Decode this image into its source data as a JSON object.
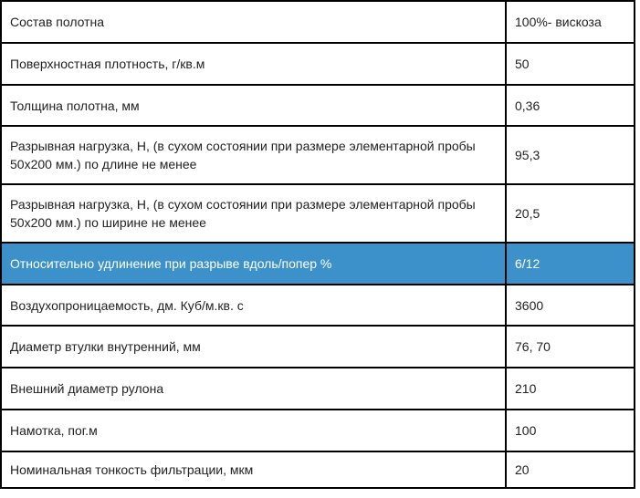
{
  "highlight_color": "#3d91cb",
  "rows": [
    {
      "param": "Состав полотна",
      "value": "100%- вискоза"
    },
    {
      "param": "Поверхностная плотность, г/кв.м",
      "value": "50"
    },
    {
      "param": "Толщина полотна, мм",
      "value": "0,36"
    },
    {
      "param": "Разрывная нагрузка, Н, (в сухом состоянии при размере элементарной пробы 50х200 мм.) по длине не менее",
      "value": "95,3"
    },
    {
      "param": "Разрывная нагрузка, Н, (в сухом состоянии при размере элементарной пробы 50х200 мм.) по ширине не менее",
      "value": "20,5"
    },
    {
      "param": "Относительно удлинение при разрыве вдоль/попер %",
      "value": "6/12",
      "highlighted": true
    },
    {
      "param": "Воздухопроницаемость, дм. Куб/м.кв. с",
      "value": "3600"
    },
    {
      "param": "Диаметр втулки внутренний, мм",
      "value": "76, 70"
    },
    {
      "param": "Внешний диаметр рулона",
      "value": "210"
    },
    {
      "param": "Намотка, пог.м",
      "value": "100"
    },
    {
      "param": "Номинальная тонкость фильтрации, мкм",
      "value": "20"
    }
  ]
}
